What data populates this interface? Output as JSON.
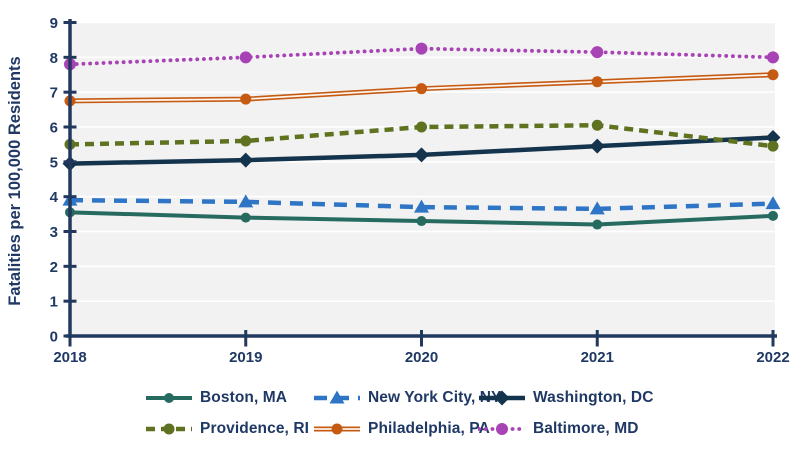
{
  "chart_data": {
    "type": "line",
    "title": "",
    "xlabel": "",
    "ylabel": "Fatalities per 100,000 Residents",
    "x": [
      "2018",
      "2019",
      "2020",
      "2021",
      "2022"
    ],
    "y_ticks": [
      "0",
      "1",
      "2",
      "3",
      "4",
      "5",
      "6",
      "7",
      "8",
      "9"
    ],
    "ylim": [
      0,
      9
    ],
    "grid": "horizontal",
    "legend_position": "bottom",
    "series": [
      {
        "name": "Boston, MA",
        "values": [
          3.55,
          3.4,
          3.3,
          3.2,
          3.45
        ],
        "color": "#276b60",
        "line": "solid",
        "marker": "circle"
      },
      {
        "name": "New York City, NY",
        "values": [
          3.9,
          3.85,
          3.7,
          3.65,
          3.8
        ],
        "color": "#2e75c6",
        "line": "dashed",
        "marker": "triangle"
      },
      {
        "name": "Washington, DC",
        "values": [
          4.95,
          5.05,
          5.2,
          5.45,
          5.7
        ],
        "color": "#14334d",
        "line": "solid",
        "marker": "diamond"
      },
      {
        "name": "Providence, RI",
        "values": [
          5.5,
          5.6,
          6.0,
          6.05,
          5.45
        ],
        "color": "#5e7220",
        "line": "dashed-short",
        "marker": "circle"
      },
      {
        "name": "Philadelphia, PA",
        "values": [
          6.75,
          6.8,
          7.1,
          7.3,
          7.5
        ],
        "color": "#c55a11",
        "line": "double",
        "marker": "circle"
      },
      {
        "name": "Baltimore, MD",
        "values": [
          7.8,
          8.0,
          8.25,
          8.15,
          8.0
        ],
        "color": "#a843b5",
        "line": "dotted",
        "marker": "circle"
      }
    ],
    "legend_rows": [
      [
        0,
        1,
        2
      ],
      [
        3,
        4,
        5
      ]
    ]
  },
  "colors": {
    "axis": "#21395e",
    "text": "#1f3864",
    "plot_bg": "#f2f2f2",
    "gridline": "#ffffff",
    "background": "#ffffff"
  }
}
